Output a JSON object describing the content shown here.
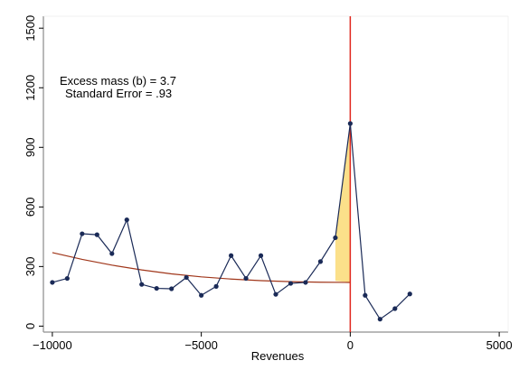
{
  "chart_data": {
    "type": "line",
    "xlabel": "Revenues",
    "ylabel": "",
    "xlim": [
      -10300,
      5300
    ],
    "ylim": [
      -30,
      1560
    ],
    "x_ticks": [
      -10000,
      -5000,
      0,
      5000
    ],
    "x_tick_labels": [
      "−10000",
      "−5000",
      "0",
      "5000"
    ],
    "y_ticks": [
      0,
      300,
      600,
      900,
      1200,
      1500
    ],
    "y_tick_labels": [
      "0",
      "300",
      "600",
      "900",
      "1200",
      "1500"
    ],
    "grid": false,
    "annotations": [
      "Excess mass (b) = 3.7",
      "Standard Error = .93"
    ],
    "threshold_x": 0,
    "series": [
      {
        "type": "line",
        "color": "#1a2a57",
        "x": [
          -10000,
          -9500,
          -9000,
          -8500,
          -8000,
          -7500,
          -7000,
          -6500,
          -6000,
          -5500,
          -5000,
          -4500,
          -4000,
          -3500,
          -3000,
          -2500,
          -2000,
          -1500,
          -1000,
          -500,
          0,
          500,
          1000,
          1500,
          2000
        ],
        "y": [
          220,
          240,
          465,
          460,
          365,
          535,
          210,
          190,
          188,
          245,
          155,
          200,
          355,
          240,
          355,
          160,
          215,
          220,
          325,
          445,
          1020,
          155,
          35,
          88,
          162
        ]
      },
      {
        "type": "curve",
        "color": "#a0361a",
        "x": [
          -10000,
          -9000,
          -8000,
          -7000,
          -6000,
          -5000,
          -4000,
          -3000,
          -2000,
          -1000,
          0
        ],
        "y": [
          370,
          336,
          307,
          283,
          263,
          248,
          237,
          229,
          224,
          221,
          220
        ]
      }
    ],
    "shaded_area": {
      "color": "#fbe08a",
      "x": [
        -500,
        0
      ],
      "lower": [
        228,
        220
      ],
      "upper": [
        445,
        1020
      ]
    }
  }
}
